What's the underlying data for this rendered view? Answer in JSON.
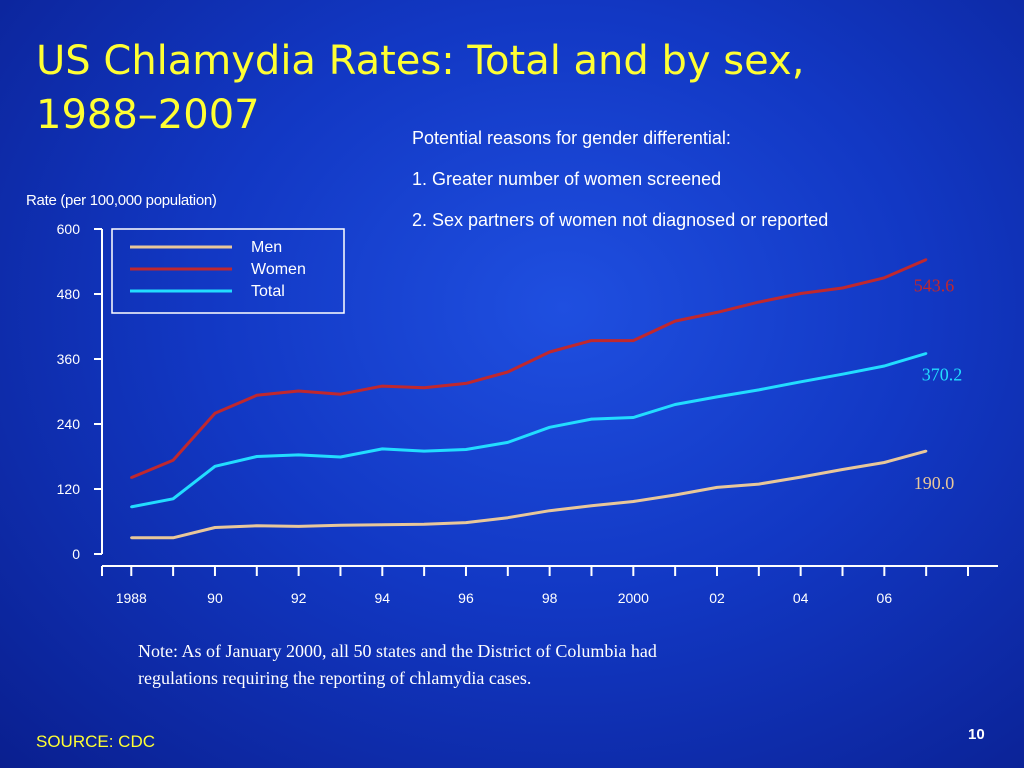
{
  "slide": {
    "title_line1": "US Chlamydia Rates: Total and by sex,",
    "title_line2": "1988–2007",
    "reasons": [
      "Potential reasons for gender differential:",
      "1. Greater number of women screened",
      "2. Sex partners of women not diagnosed or reported"
    ],
    "note_line1": "Note: As of January 2000, all 50 states and the District of Columbia had",
    "note_line2": "regulations requiring the reporting of chlamydia cases.",
    "source": "SOURCE: CDC",
    "page_number": "10"
  },
  "chart_data": {
    "type": "line",
    "ylabel": "Rate (per 100,000 population)",
    "xlabel": "",
    "ylim": [
      0,
      600
    ],
    "yticks": [
      0,
      120,
      240,
      360,
      480,
      600
    ],
    "xlim": [
      1987.3,
      2008.0
    ],
    "xticks": [
      {
        "x": 1988,
        "label": "1988"
      },
      {
        "x": 1990,
        "label": "90"
      },
      {
        "x": 1992,
        "label": "92"
      },
      {
        "x": 1994,
        "label": "94"
      },
      {
        "x": 1996,
        "label": "96"
      },
      {
        "x": 1998,
        "label": "98"
      },
      {
        "x": 2000,
        "label": "2000"
      },
      {
        "x": 2002,
        "label": "02"
      },
      {
        "x": 2004,
        "label": "04"
      },
      {
        "x": 2006,
        "label": "06"
      }
    ],
    "x": [
      1988,
      1989,
      1990,
      1991,
      1992,
      1993,
      1994,
      1995,
      1996,
      1997,
      1998,
      1999,
      2000,
      2001,
      2002,
      2003,
      2004,
      2005,
      2006,
      2007
    ],
    "legend_position": "top-left",
    "series": [
      {
        "name": "Men",
        "color": "#e8c79a",
        "values": [
          30,
          30,
          49,
          52,
          51,
          53,
          54,
          55,
          58,
          67,
          80,
          89,
          97,
          109,
          123,
          129,
          142,
          156,
          169,
          190.0
        ],
        "end_label": "190.0"
      },
      {
        "name": "Women",
        "color": "#c0282e",
        "values": [
          141,
          173,
          260,
          293,
          301,
          295,
          310,
          307,
          315,
          336,
          373,
          394,
          394,
          430,
          446,
          465,
          481,
          491,
          510,
          543.6
        ],
        "end_label": "543.6"
      },
      {
        "name": "Total",
        "color": "#22ddff",
        "values": [
          87,
          102,
          162,
          180,
          183,
          179,
          194,
          190,
          193,
          206,
          234,
          249,
          252,
          276,
          290,
          303,
          318,
          332,
          347,
          370.2
        ],
        "end_label": "370.2"
      }
    ]
  }
}
